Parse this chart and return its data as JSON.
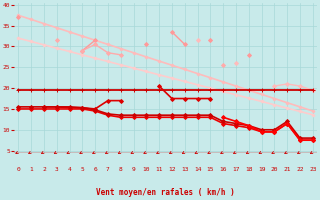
{
  "x": [
    0,
    1,
    2,
    3,
    4,
    5,
    6,
    7,
    8,
    9,
    10,
    11,
    12,
    13,
    14,
    15,
    16,
    17,
    18,
    19,
    20,
    21,
    22,
    23
  ],
  "series": [
    {
      "name": "straight_diagonal_light1",
      "color": "#ffbbbb",
      "linewidth": 1.2,
      "marker": "D",
      "markersize": 1.5,
      "y": [
        37.5,
        36.5,
        35.5,
        34.5,
        33.5,
        32.5,
        31.5,
        30.5,
        29.5,
        28.5,
        27.5,
        26.5,
        25.5,
        24.5,
        23.5,
        22.5,
        21.5,
        20.5,
        19.5,
        18.5,
        17.5,
        16.5,
        15.5,
        14.5
      ]
    },
    {
      "name": "straight_diagonal_light2",
      "color": "#ffcccc",
      "linewidth": 1.2,
      "marker": "D",
      "markersize": 1.5,
      "y": [
        32.0,
        31.2,
        30.4,
        29.6,
        28.8,
        28.0,
        27.2,
        26.4,
        25.6,
        24.8,
        24.0,
        23.2,
        22.4,
        21.6,
        20.8,
        20.0,
        19.2,
        18.4,
        17.6,
        16.8,
        16.0,
        15.2,
        14.4,
        13.6
      ]
    },
    {
      "name": "noisy_pink_upper",
      "color": "#ff9999",
      "linewidth": 1.0,
      "marker": "D",
      "markersize": 2.0,
      "y": [
        37.0,
        null,
        null,
        null,
        null,
        29.0,
        31.5,
        null,
        null,
        null,
        30.5,
        null,
        33.5,
        30.5,
        null,
        31.5,
        null,
        null,
        28.0,
        null,
        null,
        null,
        null,
        null
      ]
    },
    {
      "name": "noisy_pink_mid",
      "color": "#ffaaaa",
      "linewidth": 1.0,
      "marker": "D",
      "markersize": 2.0,
      "y": [
        null,
        null,
        null,
        31.5,
        null,
        29.0,
        30.5,
        28.5,
        28.0,
        null,
        null,
        null,
        null,
        null,
        null,
        null,
        25.5,
        null,
        null,
        null,
        null,
        null,
        null,
        null
      ]
    },
    {
      "name": "noisy_pink_lower_right",
      "color": "#ffbbbb",
      "linewidth": 1.0,
      "marker": "D",
      "markersize": 2.0,
      "y": [
        null,
        null,
        null,
        null,
        null,
        null,
        null,
        null,
        null,
        null,
        null,
        null,
        null,
        null,
        31.5,
        null,
        null,
        26.0,
        null,
        null,
        20.5,
        21.0,
        20.5,
        19.5
      ]
    },
    {
      "name": "flat_red_upper",
      "color": "#cc0000",
      "linewidth": 1.3,
      "marker": "+",
      "markersize": 3.5,
      "y": [
        19.5,
        19.5,
        19.5,
        19.5,
        19.5,
        19.5,
        19.5,
        19.5,
        19.5,
        19.5,
        19.5,
        19.5,
        19.5,
        19.5,
        19.5,
        19.5,
        19.5,
        19.5,
        19.5,
        19.5,
        19.5,
        19.5,
        19.5,
        19.5
      ]
    },
    {
      "name": "noisy_red_mid",
      "color": "#dd0000",
      "linewidth": 1.2,
      "marker": "D",
      "markersize": 2.0,
      "y": [
        null,
        null,
        15.5,
        15.5,
        15.3,
        15.3,
        15.0,
        17.0,
        17.0,
        null,
        null,
        20.5,
        17.5,
        17.5,
        17.5,
        17.5,
        null,
        null,
        null,
        null,
        null,
        null,
        null,
        null
      ]
    },
    {
      "name": "red_diagonal_seg1",
      "color": "#ee0000",
      "linewidth": 1.2,
      "marker": "D",
      "markersize": 2.0,
      "y": [
        15.0,
        15.0,
        15.0,
        15.0,
        15.0,
        15.0,
        14.5,
        13.5,
        13.0,
        13.0,
        13.0,
        13.0,
        13.0,
        13.0,
        13.0,
        13.0,
        11.5,
        11.0,
        10.5,
        9.5,
        9.5,
        11.5,
        7.5,
        7.5
      ]
    },
    {
      "name": "red_diagonal_seg2",
      "color": "#cc0000",
      "linewidth": 1.2,
      "marker": "D",
      "markersize": 2.0,
      "y": [
        15.5,
        15.5,
        15.5,
        15.5,
        15.5,
        15.3,
        14.8,
        13.8,
        13.5,
        13.5,
        13.5,
        13.5,
        13.5,
        13.5,
        13.5,
        13.5,
        12.0,
        11.5,
        11.0,
        10.0,
        10.0,
        12.0,
        8.0,
        8.0
      ]
    },
    {
      "name": "red_steep_down",
      "color": "#ff0000",
      "linewidth": 1.2,
      "marker": "D",
      "markersize": 2.0,
      "y": [
        null,
        null,
        null,
        null,
        null,
        null,
        null,
        null,
        null,
        null,
        null,
        null,
        null,
        null,
        null,
        null,
        13.0,
        12.0,
        11.0,
        9.5,
        9.5,
        11.5,
        7.5,
        7.5
      ]
    }
  ],
  "xlabel": "Vent moyen/en rafales ( km/h )",
  "xlim": [
    -0.3,
    23.3
  ],
  "ylim": [
    4.5,
    40.5
  ],
  "yticks": [
    5,
    10,
    15,
    20,
    25,
    30,
    35,
    40
  ],
  "xticks": [
    0,
    1,
    2,
    3,
    4,
    5,
    6,
    7,
    8,
    9,
    10,
    11,
    12,
    13,
    14,
    15,
    16,
    17,
    18,
    19,
    20,
    21,
    22,
    23
  ],
  "bg_color": "#c8eaea",
  "grid_color": "#a8d8d8",
  "tick_color": "#cc0000",
  "label_color": "#cc0000",
  "arrow_color": "#cc0000",
  "figsize": [
    3.2,
    2.0
  ],
  "dpi": 100
}
